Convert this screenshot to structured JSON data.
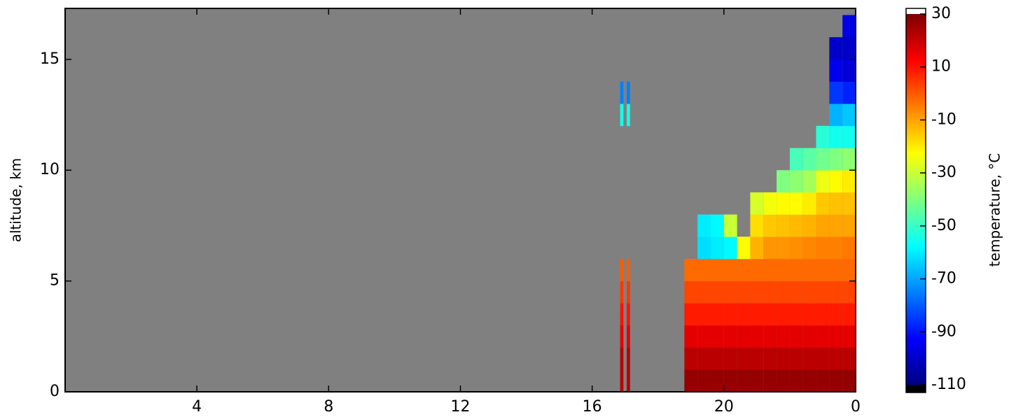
{
  "chart_data": {
    "type": "heatmap",
    "ylabel": "altitude, km",
    "xlim": [
      0,
      24
    ],
    "xticks": [
      4,
      8,
      12,
      16,
      20,
      {
        "value": 24,
        "label": "0"
      }
    ],
    "ylim": [
      0,
      17.3
    ],
    "yticks": [
      0,
      5,
      10,
      15
    ],
    "colormap": "jet",
    "missing_color": "#808080",
    "xbins": [
      16.85,
      16.95,
      17.05,
      17.15,
      18.8,
      19.2,
      19.6,
      20.0,
      20.4,
      20.8,
      21.2,
      21.6,
      22.0,
      22.4,
      22.8,
      23.2,
      23.6,
      24.0
    ],
    "ybins": [
      0,
      1,
      2,
      3,
      4,
      5,
      6,
      7,
      8,
      9,
      10,
      11,
      12,
      13,
      14,
      15,
      16,
      17
    ],
    "z": [
      [
        22,
        null,
        22,
        null,
        27,
        27,
        27,
        27,
        27,
        27,
        27,
        27,
        27,
        27,
        27,
        27,
        27
      ],
      [
        22,
        null,
        22,
        null,
        22,
        22,
        22,
        22,
        22,
        22,
        22,
        22,
        22,
        22,
        22,
        22,
        22
      ],
      [
        16,
        null,
        16,
        null,
        16,
        16,
        16,
        16,
        16,
        16,
        16,
        16,
        16,
        16,
        16,
        16,
        16
      ],
      [
        10,
        null,
        10,
        null,
        9,
        9,
        9,
        9,
        9,
        9,
        9,
        9,
        9,
        9,
        9,
        9,
        9
      ],
      [
        5,
        null,
        5,
        null,
        3,
        3,
        3,
        3,
        3,
        3,
        3,
        3,
        3,
        3,
        3,
        3,
        3
      ],
      [
        0,
        null,
        0,
        null,
        -2,
        -2,
        -2,
        -2,
        -2,
        -2,
        -2,
        -2,
        -2,
        -2,
        -2,
        -2,
        -2
      ],
      [
        null,
        null,
        null,
        null,
        null,
        -62,
        -60,
        -58,
        -22,
        -12,
        -8,
        -8,
        -7,
        -6,
        -5,
        -5,
        -4
      ],
      [
        null,
        null,
        null,
        null,
        null,
        -60,
        -58,
        -30,
        null,
        -18,
        -15,
        -14,
        -13,
        -12,
        -10,
        -10,
        -10
      ],
      [
        null,
        null,
        null,
        null,
        null,
        null,
        null,
        null,
        null,
        -28,
        -24,
        -22,
        -22,
        -20,
        -15,
        -14,
        -14
      ],
      [
        null,
        null,
        null,
        null,
        null,
        null,
        null,
        null,
        null,
        null,
        null,
        -40,
        -38,
        -35,
        -25,
        -22,
        -20
      ],
      [
        null,
        null,
        null,
        null,
        null,
        null,
        null,
        null,
        null,
        null,
        null,
        null,
        -48,
        -45,
        -42,
        -40,
        -38
      ],
      [
        null,
        null,
        null,
        null,
        null,
        null,
        null,
        null,
        null,
        null,
        null,
        null,
        null,
        null,
        -52,
        -55,
        -55
      ],
      [
        -55,
        null,
        -55,
        null,
        null,
        null,
        null,
        null,
        null,
        null,
        null,
        null,
        null,
        null,
        null,
        -68,
        -65
      ],
      [
        -75,
        null,
        -75,
        null,
        null,
        null,
        null,
        null,
        null,
        null,
        null,
        null,
        null,
        null,
        null,
        -85,
        -88
      ],
      [
        null,
        null,
        null,
        null,
        null,
        null,
        null,
        null,
        null,
        null,
        null,
        null,
        null,
        null,
        null,
        -95,
        -98
      ],
      [
        null,
        null,
        null,
        null,
        null,
        null,
        null,
        null,
        null,
        null,
        null,
        null,
        null,
        null,
        null,
        -100,
        -100
      ],
      [
        null,
        null,
        null,
        null,
        null,
        null,
        null,
        null,
        null,
        null,
        null,
        null,
        null,
        null,
        null,
        null,
        -96
      ]
    ],
    "colorbar": {
      "label": "temperature, °C",
      "ylim": [
        -110,
        30
      ],
      "yticks": [
        30,
        10,
        -10,
        -30,
        -50,
        -70,
        -90,
        -110
      ],
      "over_color": "#ffffff",
      "under_color": "#000000"
    }
  }
}
